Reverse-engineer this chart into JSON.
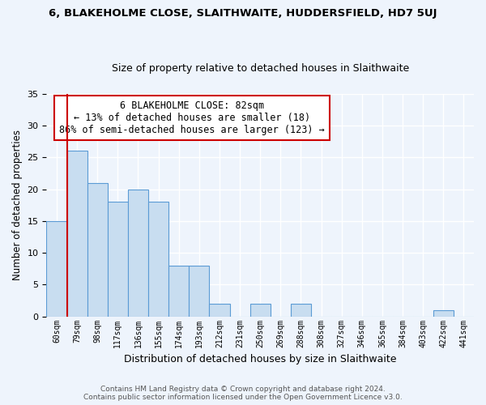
{
  "title": "6, BLAKEHOLME CLOSE, SLAITHWAITE, HUDDERSFIELD, HD7 5UJ",
  "subtitle": "Size of property relative to detached houses in Slaithwaite",
  "xlabel": "Distribution of detached houses by size in Slaithwaite",
  "ylabel": "Number of detached properties",
  "bar_labels": [
    "60sqm",
    "79sqm",
    "98sqm",
    "117sqm",
    "136sqm",
    "155sqm",
    "174sqm",
    "193sqm",
    "212sqm",
    "231sqm",
    "250sqm",
    "269sqm",
    "288sqm",
    "308sqm",
    "327sqm",
    "346sqm",
    "365sqm",
    "384sqm",
    "403sqm",
    "422sqm",
    "441sqm"
  ],
  "bar_values": [
    15,
    26,
    21,
    18,
    20,
    18,
    8,
    8,
    2,
    0,
    2,
    0,
    2,
    0,
    0,
    0,
    0,
    0,
    0,
    1,
    0
  ],
  "bar_color": "#c8ddf0",
  "bar_edge_color": "#5b9bd5",
  "ylim": [
    0,
    35
  ],
  "yticks": [
    0,
    5,
    10,
    15,
    20,
    25,
    30,
    35
  ],
  "vline_color": "#cc0000",
  "annotation_title": "6 BLAKEHOLME CLOSE: 82sqm",
  "annotation_line1": "← 13% of detached houses are smaller (18)",
  "annotation_line2": "86% of semi-detached houses are larger (123) →",
  "annotation_box_color": "#ffffff",
  "annotation_box_edge": "#cc0000",
  "footer1": "Contains HM Land Registry data © Crown copyright and database right 2024.",
  "footer2": "Contains public sector information licensed under the Open Government Licence v3.0.",
  "bg_color": "#eef4fc",
  "plot_bg_color": "#eef4fc",
  "grid_color": "#ffffff"
}
